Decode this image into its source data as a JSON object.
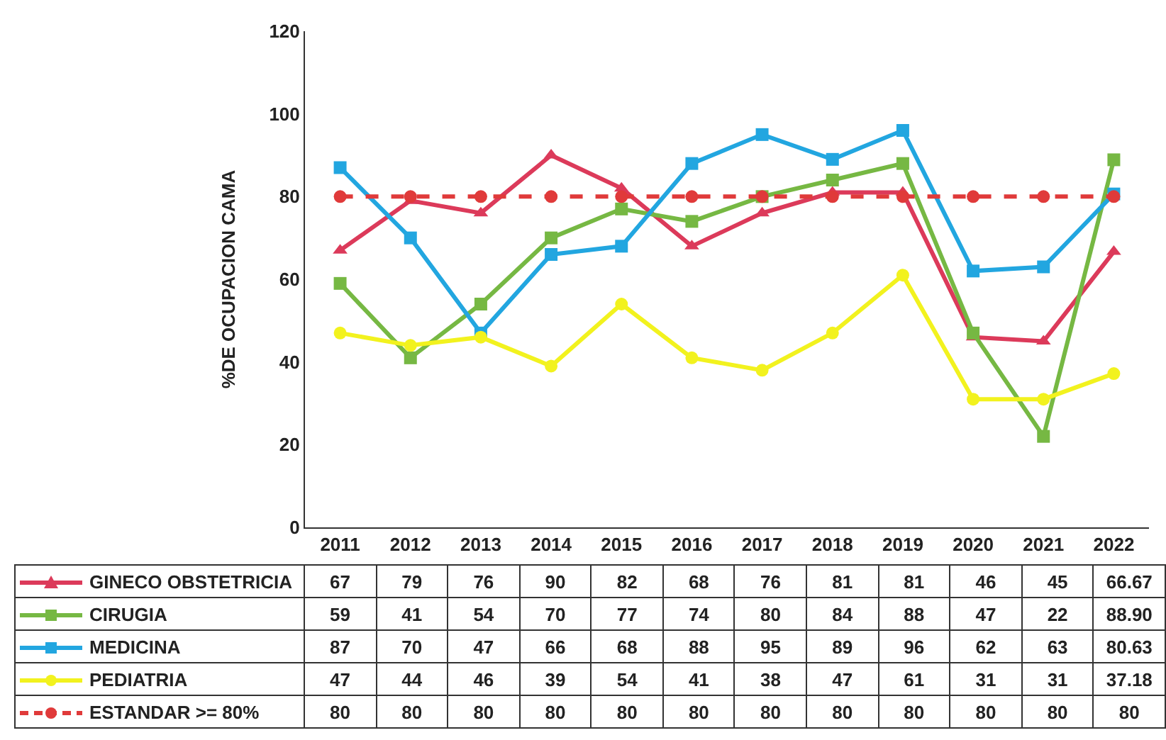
{
  "chart_data": {
    "type": "line",
    "ylabel": "%DE OCUPACION CAMA",
    "categories": [
      "2011",
      "2012",
      "2013",
      "2014",
      "2015",
      "2016",
      "2017",
      "2018",
      "2019",
      "2020",
      "2021",
      "2022"
    ],
    "series": [
      {
        "name": "GINECO OBSTETRICIA",
        "color": "#dc3a5a",
        "marker": "triangle",
        "values": [
          67,
          79,
          76,
          90,
          82,
          68,
          76,
          81,
          81,
          46,
          45,
          66.67
        ],
        "value_labels": [
          "67",
          "79",
          "76",
          "90",
          "82",
          "68",
          "76",
          "81",
          "81",
          "46",
          "45",
          "66.67"
        ]
      },
      {
        "name": "CIRUGIA",
        "color": "#76b843",
        "marker": "square",
        "values": [
          59,
          41,
          54,
          70,
          77,
          74,
          80,
          84,
          88,
          47,
          22,
          88.9
        ],
        "value_labels": [
          "59",
          "41",
          "54",
          "70",
          "77",
          "74",
          "80",
          "84",
          "88",
          "47",
          "22",
          "88.90"
        ]
      },
      {
        "name": "MEDICINA",
        "color": "#22a6e0",
        "marker": "square",
        "values": [
          87,
          70,
          47,
          66,
          68,
          88,
          95,
          89,
          96,
          62,
          63,
          80.63
        ],
        "value_labels": [
          "87",
          "70",
          "47",
          "66",
          "68",
          "88",
          "95",
          "89",
          "96",
          "62",
          "63",
          "80.63"
        ]
      },
      {
        "name": "PEDIATRIA",
        "color": "#f2f21e",
        "marker": "circle",
        "values": [
          47,
          44,
          46,
          39,
          54,
          41,
          38,
          47,
          61,
          31,
          31,
          37.18
        ],
        "value_labels": [
          "47",
          "44",
          "46",
          "39",
          "54",
          "41",
          "38",
          "47",
          "61",
          "31",
          "31",
          "37.18"
        ]
      },
      {
        "name": "ESTANDAR >= 80%",
        "color": "#e03a3a",
        "marker": "circle",
        "line_style": "dashed",
        "values": [
          80,
          80,
          80,
          80,
          80,
          80,
          80,
          80,
          80,
          80,
          80,
          80
        ],
        "value_labels": [
          "80",
          "80",
          "80",
          "80",
          "80",
          "80",
          "80",
          "80",
          "80",
          "80",
          "80",
          "80"
        ]
      }
    ],
    "ylim": [
      0,
      120
    ],
    "yticks": [
      0,
      20,
      40,
      60,
      80,
      100,
      120
    ],
    "grid": false,
    "legend": "bottom"
  }
}
